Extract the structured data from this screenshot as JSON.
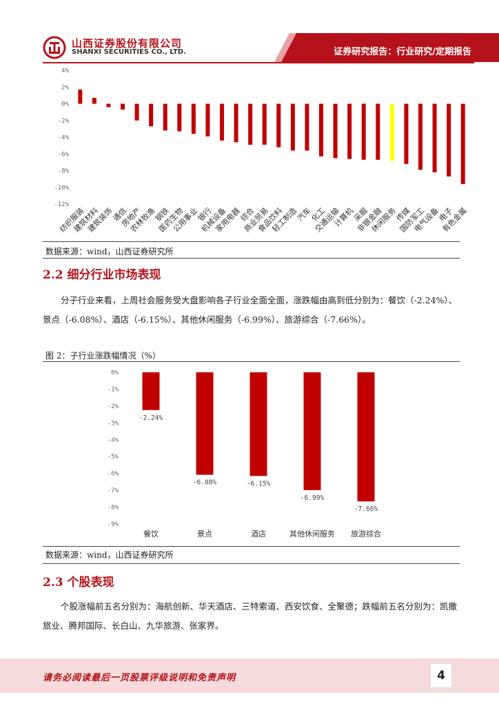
{
  "header": {
    "company_cn": "山西证券股份有限公司",
    "company_en": "SHANXI SECURITIES CO., LTD.",
    "report_title": "证券研究报告：行业研究/定期报告",
    "brand_color": "#b5121b"
  },
  "chart_data": [
    {
      "type": "bar",
      "title": "",
      "categories": [
        "纺织服装",
        "建筑材料",
        "建筑装饰",
        "通信",
        "房地产",
        "农林牧渔",
        "钢铁",
        "医药生物",
        "公用事业",
        "银行",
        "机械设备",
        "家用电器",
        "综合",
        "商业贸易",
        "食品饮料",
        "轻工制造",
        "汽车",
        "化工",
        "交通运输",
        "计算机",
        "采掘",
        "非银金融",
        "休闲服务",
        "传媒",
        "国防军工",
        "电气设备",
        "电子",
        "有色金属"
      ],
      "values": [
        1.7,
        0.7,
        -0.4,
        -0.7,
        -2.0,
        -2.7,
        -3.2,
        -3.3,
        -3.6,
        -3.9,
        -4.4,
        -4.6,
        -4.9,
        -4.9,
        -5.2,
        -5.6,
        -5.6,
        -6.3,
        -6.5,
        -6.6,
        -6.7,
        -6.7,
        -6.8,
        -7.2,
        -7.9,
        -8.2,
        -8.7,
        -9.6
      ],
      "highlight_category": "休闲服务",
      "ylim": [
        -12,
        4
      ],
      "yticks": [
        "4%",
        "2%",
        "0%",
        "-2%",
        "-4%",
        "-6%",
        "-8%",
        "-10%",
        "-12%"
      ],
      "bar_color": "#c00000",
      "highlight_color": "#ffff00"
    },
    {
      "type": "bar",
      "title": "图 2：子行业涨跌幅情况（%）",
      "categories": [
        "餐饮",
        "景点",
        "酒店",
        "其他休闲服务",
        "旅游综合"
      ],
      "values": [
        -2.24,
        -6.08,
        -6.15,
        -6.99,
        -7.66
      ],
      "value_labels": [
        "-2.24%",
        "-6.08%",
        "-6.15%",
        "-6.99%",
        "-7.66%"
      ],
      "ylim": [
        -9,
        0
      ],
      "yticks": [
        "0%",
        "-1%",
        "-2%",
        "-3%",
        "-4%",
        "-5%",
        "-6%",
        "-7%",
        "-8%",
        "-9%"
      ],
      "bar_color": "#c00000"
    }
  ],
  "sections": {
    "source_1": "数据来源：wind，山西证券研究所",
    "s22_title": "2.2 细分行业市场表现",
    "s22_para": "分子行业来看，上周社会服务受大盘影响各子行业全面全面，涨跌幅由高到低分别为：餐饮（-2.24%）、景点（-6.08%）、酒店（-6.15%）、其他休闲服务（-6.99%）、旅游综合（-7.66%）。",
    "fig2_caption": "图 2：子行业涨跌幅情况（%）",
    "source_2": "数据来源：wind，山西证券研究所",
    "s23_title": "2.3 个股表现",
    "s23_para": "个股涨幅前五名分别为：海航创新、华天酒店、三特索道、西安饮食、全聚德；跌幅前五名分别为：凯撒旅业、腾邦国际、长白山、九华旅游、张家界。"
  },
  "footer": {
    "disclaimer": "请务必阅读最后一页股票评级说明和免责声明",
    "page_number": "4"
  }
}
